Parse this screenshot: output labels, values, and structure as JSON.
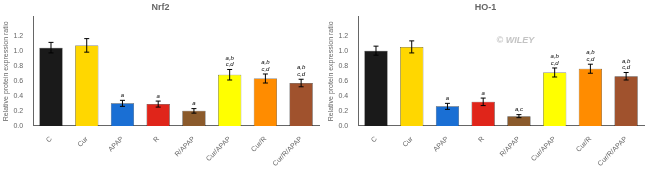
{
  "chart_data": [
    {
      "type": "bar",
      "title": "Nrf2",
      "categories": [
        "C",
        "Cur",
        "APAP",
        "R",
        "R/APAP",
        "Cur/APAP",
        "Cur/R",
        "Cur/R/APAP"
      ],
      "values": [
        1.04,
        1.07,
        0.3,
        0.29,
        0.2,
        0.68,
        0.63,
        0.57
      ],
      "errors": [
        0.07,
        0.09,
        0.04,
        0.04,
        0.03,
        0.07,
        0.06,
        0.05
      ],
      "colors": [
        "#1a1a1a",
        "#ffd700",
        "#1a6fd4",
        "#e0251a",
        "#8b5a2b",
        "#ffff00",
        "#ff8c00",
        "#a0522d"
      ],
      "ylabel": "Relative protein expression ratio",
      "ylim": [
        0,
        1.45
      ],
      "yticks": [
        {
          "value": 0,
          "label": "0.0"
        },
        0.2,
        0.4,
        0.6,
        0.8,
        {
          "value": 1,
          "label": "1.0"
        },
        1.2
      ],
      "grid": false,
      "annotations": [
        {
          "category": "APAP",
          "text": "a"
        },
        {
          "category": "R",
          "text": "a"
        },
        {
          "category": "R/APAP",
          "text": "a"
        },
        {
          "category": "Cur/APAP",
          "text": "a,b\nc,d"
        },
        {
          "category": "Cur/R",
          "text": "a,b\nc,d"
        },
        {
          "category": "Cur/R/APAP",
          "text": "a,b\nc,d"
        }
      ]
    },
    {
      "type": "bar",
      "title": "HO-1",
      "categories": [
        "C",
        "Cur",
        "APAP",
        "R",
        "R/APAP",
        "Cur/APAP",
        "Cur/R",
        "Cur/R/APAP"
      ],
      "values": [
        1.0,
        1.05,
        0.26,
        0.32,
        0.13,
        0.71,
        0.76,
        0.66
      ],
      "errors": [
        0.06,
        0.08,
        0.04,
        0.05,
        0.02,
        0.06,
        0.06,
        0.05
      ],
      "colors": [
        "#1a1a1a",
        "#ffd700",
        "#1a6fd4",
        "#e0251a",
        "#8b5a2b",
        "#ffff00",
        "#ff8c00",
        "#a0522d"
      ],
      "ylabel": "Relative protein expression ratio",
      "ylim": [
        0,
        1.45
      ],
      "yticks": [
        {
          "value": 0,
          "label": "0.0"
        },
        0.2,
        0.4,
        0.6,
        0.8,
        {
          "value": 1,
          "label": "1.0"
        },
        1.2
      ],
      "grid": false,
      "annotations": [
        {
          "category": "APAP",
          "text": "a"
        },
        {
          "category": "R",
          "text": "a"
        },
        {
          "category": "R/APAP",
          "text": "a,c"
        },
        {
          "category": "Cur/APAP",
          "text": "a,b\nc,d"
        },
        {
          "category": "Cur/R",
          "text": "a,b\nc,d"
        },
        {
          "category": "Cur/R/APAP",
          "text": "a,b\nc,d"
        },
        {
          "text": "© WILEY",
          "color": "#aaaaaa"
        }
      ]
    }
  ]
}
